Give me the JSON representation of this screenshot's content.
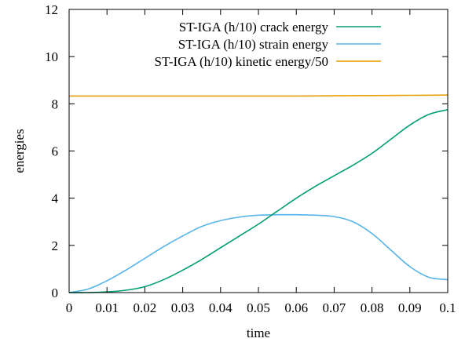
{
  "chart_data": {
    "type": "line",
    "title": "",
    "xlabel": "time",
    "ylabel": "energies",
    "xlim": [
      0,
      0.1
    ],
    "ylim": [
      0,
      12
    ],
    "x_ticks": [
      "0",
      "0.01",
      "0.02",
      "0.03",
      "0.04",
      "0.05",
      "0.06",
      "0.07",
      "0.08",
      "0.09",
      "0.1"
    ],
    "y_ticks": [
      "0",
      "2",
      "4",
      "6",
      "8",
      "10",
      "12"
    ],
    "grid": false,
    "legend_position": "top-right",
    "series": [
      {
        "name": "ST-IGA (h/10) crack energy",
        "color": "#009e73",
        "x": [
          0,
          0.005,
          0.01,
          0.015,
          0.02,
          0.025,
          0.03,
          0.035,
          0.04,
          0.045,
          0.05,
          0.055,
          0.06,
          0.065,
          0.07,
          0.075,
          0.08,
          0.085,
          0.09,
          0.095,
          0.1
        ],
        "y": [
          0,
          0,
          0.03,
          0.1,
          0.25,
          0.55,
          0.95,
          1.4,
          1.9,
          2.4,
          2.9,
          3.45,
          4.0,
          4.5,
          4.95,
          5.4,
          5.9,
          6.5,
          7.1,
          7.55,
          7.75
        ]
      },
      {
        "name": "ST-IGA (h/10) strain energy",
        "color": "#56b4e9",
        "x": [
          0,
          0.005,
          0.01,
          0.015,
          0.02,
          0.025,
          0.03,
          0.035,
          0.04,
          0.045,
          0.05,
          0.055,
          0.06,
          0.065,
          0.07,
          0.075,
          0.08,
          0.085,
          0.09,
          0.095,
          0.1
        ],
        "y": [
          0,
          0.15,
          0.5,
          0.95,
          1.45,
          1.95,
          2.4,
          2.8,
          3.05,
          3.2,
          3.28,
          3.3,
          3.3,
          3.28,
          3.22,
          3.0,
          2.5,
          1.8,
          1.1,
          0.65,
          0.55
        ]
      },
      {
        "name": "ST-IGA (h/10) kinetic energy/50",
        "color": "#e69f00",
        "x": [
          0,
          0.01,
          0.02,
          0.03,
          0.04,
          0.05,
          0.06,
          0.07,
          0.08,
          0.09,
          0.1
        ],
        "y": [
          8.33,
          8.33,
          8.33,
          8.33,
          8.33,
          8.33,
          8.33,
          8.34,
          8.35,
          8.36,
          8.37
        ]
      }
    ]
  }
}
